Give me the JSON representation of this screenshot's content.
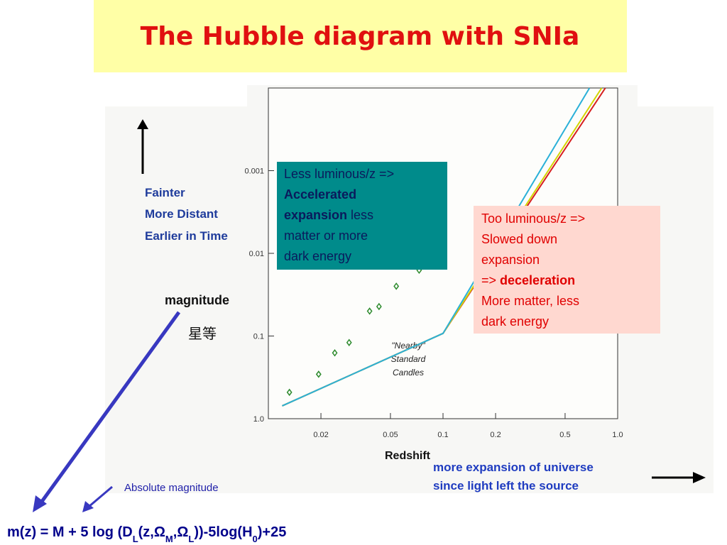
{
  "title": "The Hubble diagram with SNIa",
  "left_labels": [
    "Fainter",
    "More Distant",
    "Earlier in Time"
  ],
  "magnitude_label": "magnitude",
  "magnitude_cn": "星等",
  "bottom_labels": [
    "more expansion of universe",
    "since light left the source"
  ],
  "absolute_label": "Absolute magnitude",
  "formula": [
    {
      "text": "m(z) = M + 5 log (D"
    },
    {
      "text": "L",
      "sub": true
    },
    {
      "text": "(z,"
    },
    {
      "text": "Ω"
    },
    {
      "text": "M",
      "sub": true
    },
    {
      "text": ","
    },
    {
      "text": "Ω"
    },
    {
      "text": "L",
      "sub": true
    },
    {
      "text": "))-5log(H"
    },
    {
      "text": "0",
      "sub": true
    },
    {
      "text": ")+25"
    }
  ],
  "accel_box": [
    [
      {
        "text": "Less luminous/z =>"
      }
    ],
    [
      {
        "text": "Accelerated",
        "bold": true
      }
    ],
    [
      {
        "text": "expansion",
        "bold": true
      },
      {
        "text": " less"
      }
    ],
    [
      {
        "text": "matter or more"
      }
    ],
    [
      {
        "text": "dark energy"
      }
    ]
  ],
  "decel_box": [
    [
      {
        "text": "Too luminous/z =>"
      }
    ],
    [
      {
        "text": "Slowed down"
      }
    ],
    [
      {
        "text": "expansion"
      }
    ],
    [
      {
        "text": "=> "
      },
      {
        "text": "deceleration",
        "bold": true
      }
    ],
    [
      {
        "text": "More matter, less"
      }
    ],
    [
      {
        "text": "dark energy"
      }
    ]
  ],
  "chart_data": {
    "type": "line",
    "x_label": "Redshift",
    "annotation": [
      "\"Nearby\"",
      "Standard",
      "Candles"
    ],
    "log_x": true,
    "log_y": true,
    "xlim": [
      0.01,
      1.0
    ],
    "ylim": [
      1.0,
      0.0001
    ],
    "xticks": [
      0.02,
      0.05,
      0.1,
      0.2,
      0.5,
      {
        "value": 1,
        "label": "1.0"
      }
    ],
    "yticks": [
      0.001,
      0.01,
      0.1,
      {
        "value": 1,
        "label": "1.0"
      }
    ],
    "series": [
      {
        "color": "#d62020",
        "x": [
          0.012,
          0.1,
          0.85
        ],
        "values": [
          0.7,
          0.093,
          0.0001
        ]
      },
      {
        "color": "#d4d400",
        "x": [
          0.012,
          0.1,
          0.81
        ],
        "values": [
          0.7,
          0.093,
          0.0001
        ]
      },
      {
        "color": "#2ab0d8",
        "x": [
          0.012,
          0.1,
          0.69
        ],
        "values": [
          0.7,
          0.093,
          0.0001
        ]
      }
    ],
    "points": {
      "color": "#2e8b2e",
      "x": [
        0.0132,
        0.0194,
        0.024,
        0.029,
        0.038,
        0.043,
        0.054,
        0.073
      ],
      "values": [
        0.48,
        0.29,
        0.16,
        0.12,
        0.05,
        0.044,
        0.025,
        0.016
      ]
    }
  }
}
